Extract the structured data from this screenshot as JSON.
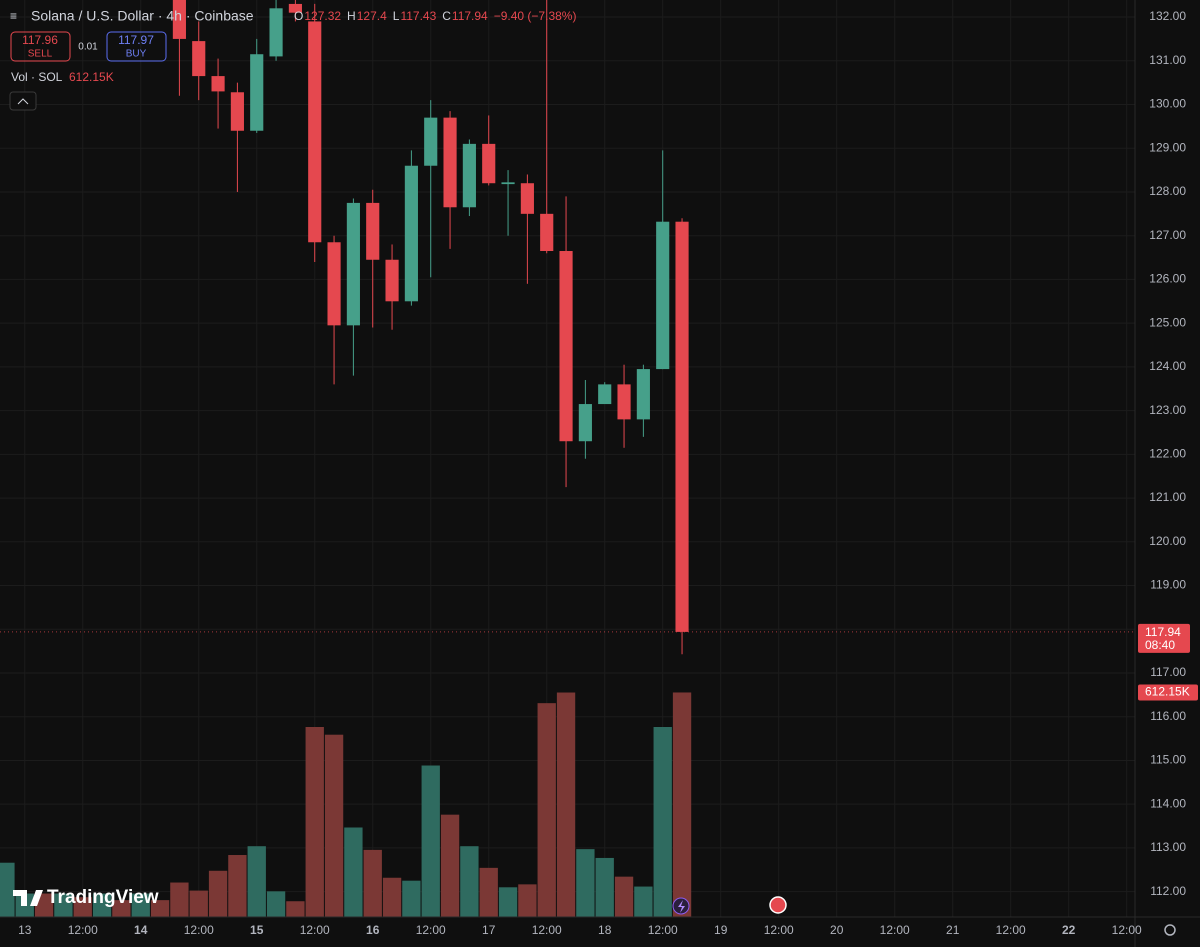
{
  "chart_data": {
    "type": "candlestick",
    "title": "Solana / U.S. Dollar · 4h · Coinbase",
    "open": [
      null,
      null,
      null,
      null,
      null,
      null,
      null,
      null,
      null,
      132.4,
      131.45,
      130.65,
      130.28,
      129.4,
      131.1,
      132.3,
      131.9,
      126.85,
      124.95,
      127.75,
      126.45,
      125.5,
      128.6,
      129.7,
      127.65,
      129.1,
      128.18,
      128.2,
      127.5,
      126.65,
      122.3,
      123.15,
      123.6,
      122.8,
      123.95,
      127.32
    ],
    "high": [
      null,
      null,
      null,
      null,
      null,
      null,
      null,
      null,
      null,
      132.6,
      131.9,
      131.05,
      130.5,
      131.5,
      132.5,
      132.5,
      132.3,
      127.0,
      127.85,
      128.05,
      126.8,
      128.95,
      130.1,
      129.85,
      129.2,
      129.75,
      128.5,
      128.4,
      132.5,
      127.9,
      123.7,
      123.65,
      124.05,
      124.05,
      128.95,
      127.4
    ],
    "low": [
      null,
      null,
      null,
      null,
      null,
      null,
      null,
      null,
      null,
      130.2,
      130.1,
      129.45,
      128.0,
      129.35,
      131.0,
      131.9,
      126.4,
      123.6,
      123.8,
      124.9,
      124.85,
      125.4,
      126.05,
      126.7,
      127.45,
      128.15,
      127.0,
      125.9,
      126.6,
      121.25,
      121.9,
      123.2,
      122.15,
      122.4,
      123.95,
      117.43
    ],
    "close": [
      null,
      null,
      null,
      null,
      null,
      null,
      null,
      null,
      null,
      131.5,
      130.65,
      130.3,
      129.4,
      131.15,
      132.2,
      132.1,
      126.85,
      124.95,
      127.75,
      126.45,
      125.5,
      128.6,
      129.7,
      127.65,
      129.1,
      128.2,
      128.22,
      127.5,
      126.65,
      122.3,
      123.15,
      123.6,
      122.8,
      123.95,
      127.32,
      117.94
    ],
    "volume": [
      148,
      64,
      64,
      64,
      54,
      64,
      46,
      64,
      46,
      94,
      72,
      126,
      169,
      193,
      70,
      43,
      518,
      497,
      244,
      183,
      107,
      99,
      413,
      279,
      193,
      134,
      81,
      89,
      583,
      612,
      185,
      161,
      110,
      83,
      518,
      612.15
    ],
    "volume_colors": [
      "#2f6b60",
      "#2f6b60",
      "#7b3835",
      "#2f6b60",
      "#7b3835",
      "#2f6b60",
      "#7b3835",
      "#2f6b60",
      "#7b3835",
      "#7b3835",
      "#7b3835",
      "#7b3835",
      "#7b3835",
      "#2f6b60",
      "#2f6b60",
      "#7b3835",
      "#7b3835",
      "#7b3835",
      "#2f6b60",
      "#7b3835",
      "#7b3835",
      "#2f6b60",
      "#2f6b60",
      "#7b3835",
      "#2f6b60",
      "#7b3835",
      "#2f6b60",
      "#7b3835",
      "#7b3835",
      "#7b3835",
      "#2f6b60",
      "#2f6b60",
      "#7b3835",
      "#2f6b60",
      "#2f6b60",
      "#7b3835"
    ],
    "up_color": "#46a08a",
    "down_color": "#e5484f",
    "volume_lim": [
      0,
      2500
    ],
    "ylim": [
      111.42,
      132.39
    ],
    "yticks": [
      {
        "value": 132,
        "label": "132.00"
      },
      {
        "value": 131,
        "label": "131.00"
      },
      {
        "value": 130,
        "label": "130.00"
      },
      {
        "value": 129,
        "label": "129.00"
      },
      {
        "value": 128,
        "label": "128.00"
      },
      {
        "value": 127,
        "label": "127.00"
      },
      {
        "value": 126,
        "label": "126.00"
      },
      {
        "value": 125,
        "label": "125.00"
      },
      {
        "value": 124,
        "label": "124.00"
      },
      {
        "value": 123,
        "label": "123.00"
      },
      {
        "value": 122,
        "label": "122.00"
      },
      {
        "value": 121,
        "label": "121.00"
      },
      {
        "value": 120,
        "label": "120.00"
      },
      {
        "value": 119,
        "label": "119.00"
      },
      {
        "value": 118,
        "label": "118.00"
      },
      {
        "value": 117,
        "label": "117.00"
      },
      {
        "value": 116,
        "label": "116.00"
      },
      {
        "value": 115,
        "label": "115.00"
      },
      {
        "value": 114,
        "label": "114.00"
      },
      {
        "value": 113,
        "label": "113.00"
      },
      {
        "value": 112,
        "label": "112.00"
      }
    ],
    "xlim": [
      -0.28,
      58.43
    ],
    "xticks": [
      {
        "value": 1,
        "label": "13"
      },
      {
        "value": 4,
        "label": "12:00"
      },
      {
        "value": 7,
        "label": "14"
      },
      {
        "value": 10,
        "label": "12:00"
      },
      {
        "value": 13,
        "label": "15"
      },
      {
        "value": 16,
        "label": "12:00"
      },
      {
        "value": 19,
        "label": "16"
      },
      {
        "value": 22,
        "label": "12:00"
      },
      {
        "value": 25,
        "label": "17"
      },
      {
        "value": 28,
        "label": "12:00"
      },
      {
        "value": 31,
        "label": "18"
      },
      {
        "value": 34,
        "label": "12:00"
      },
      {
        "value": 37,
        "label": "19"
      },
      {
        "value": 40,
        "label": "12:00"
      },
      {
        "value": 43,
        "label": "20"
      },
      {
        "value": 46,
        "label": "12:00"
      },
      {
        "value": 49,
        "label": "21"
      },
      {
        "value": 52,
        "label": "12:00"
      },
      {
        "value": 55,
        "label": "22"
      },
      {
        "value": 58,
        "label": "12:00"
      }
    ],
    "bold_xticks": [
      2,
      4,
      6,
      18
    ],
    "grid": true,
    "countdown": "08:40",
    "last_volume_label": "612.15K"
  },
  "header": {
    "o": "O",
    "h": "H",
    "l": "L",
    "c": "C",
    "change": "−9.40 (−7.38%)",
    "sell_price": "117.96",
    "sell": "SELL",
    "spread": "0.01",
    "buy_price": "117.97",
    "buy": "BUY",
    "volume_title": "Vol · SOL",
    "logo": "TradingView"
  }
}
